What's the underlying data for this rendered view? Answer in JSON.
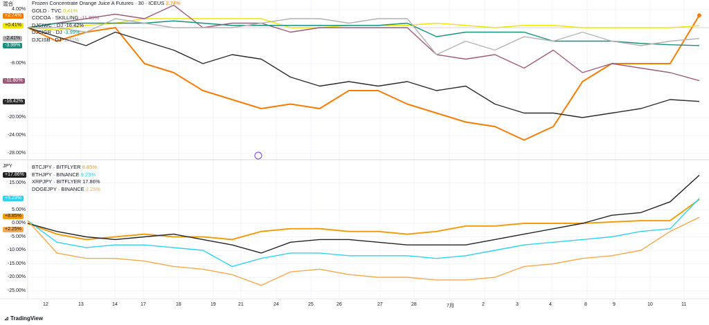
{
  "top_pane": {
    "label": "混合",
    "yticks": [
      "4.00%",
      "-8.00%",
      "-20.00%",
      "-24.00%",
      "-28.00%"
    ]
  },
  "bottom_pane": {
    "label": "JPY",
    "yticks": [
      "15.00%",
      "5.00%",
      "0.00%",
      "-5.00%",
      "-10.00%",
      "-15.00%",
      "-20.00%",
      "-25.00%"
    ]
  },
  "xticks": [
    "12",
    "13",
    "14",
    "17",
    "18",
    "19",
    "21",
    "24",
    "25",
    "26",
    "27",
    "28",
    "7月",
    "2",
    "3",
    "4",
    "8",
    "9",
    "10",
    "11"
  ],
  "footer": {
    "logo": "TradingView"
  },
  "chart_data": [
    {
      "type": "line",
      "pane": "top",
      "ylim": [
        -28,
        4
      ],
      "series": [
        {
          "name": "Frozen Concentrate Orange Juice A Futures · 30 · ICEUS",
          "last": "2.74%",
          "tag": "+2.74%",
          "color": "#f57c00",
          "values": [
            0,
            -3,
            -1,
            0,
            -8,
            -10,
            -14,
            -16,
            -18,
            -17,
            -18,
            -14,
            -14,
            -17,
            -19,
            -21,
            -22,
            -25,
            -22,
            -12,
            -8,
            -8,
            -8,
            2.74
          ]
        },
        {
          "name": "GOLD · TVC",
          "last": "0.41%",
          "tag": "+0.41%",
          "color": "#f2e600",
          "values": [
            0,
            -0.5,
            0.5,
            1,
            2,
            2,
            2,
            2,
            2,
            0,
            0,
            0.5,
            0.5,
            0.5,
            1,
            0.5,
            0,
            0.5,
            0.5,
            0,
            0,
            0,
            0,
            0.41
          ]
        },
        {
          "name": "COCOA · SKILLING",
          "last": "-11.80%",
          "tag": "-11.80%",
          "color": "#9c5a7c",
          "values": [
            0,
            1,
            2,
            3,
            2,
            5,
            0,
            1,
            1,
            -1,
            0,
            0,
            0,
            0,
            -6,
            -7,
            -6,
            -9,
            -5,
            -10,
            -8,
            -9,
            -10,
            -11.8
          ]
        },
        {
          "name": "DJCIWC · DJ",
          "last": "-16.42%",
          "tag": "-16.42%",
          "color": "#2a2a2a",
          "values": [
            0,
            -2,
            -4,
            -1,
            -3,
            -5,
            -8,
            -6,
            -7,
            -11,
            -13,
            -12,
            -13,
            -12,
            -14,
            -13,
            -17,
            -19,
            -19,
            -20,
            -19,
            -18,
            -16,
            -16.42
          ]
        },
        {
          "name": "DJCIGR · DJ",
          "last": "-3.99%",
          "tag": "-3.99%",
          "color": "#14907e",
          "values": [
            0,
            1,
            1,
            1,
            1,
            1.5,
            1,
            0.5,
            0.5,
            0.5,
            0.5,
            0.5,
            0.5,
            1,
            -2,
            -1,
            -1,
            -1,
            -3,
            -3,
            -3,
            -3.5,
            -3.8,
            -3.99
          ]
        },
        {
          "name": "DJCISB · DJ",
          "last": "-2.41%",
          "tag": "-2.41%",
          "color": "#b2b2b2",
          "values": [
            0,
            0,
            -1,
            2,
            1,
            0,
            0,
            0,
            1,
            2,
            2,
            1,
            2,
            2,
            -6,
            -3,
            -5,
            -2,
            -3,
            -1,
            -3,
            -4,
            -3,
            -2.41
          ]
        }
      ]
    },
    {
      "type": "line",
      "pane": "bottom",
      "ylim": [
        -25,
        15
      ],
      "series": [
        {
          "name": "BTCJPY · BITFLYER",
          "last": "8.85%",
          "tag": "+8.85%",
          "color": "#f29d0d",
          "values": [
            0,
            -4,
            -6,
            -5,
            -4,
            -5,
            -5,
            -6,
            -3,
            -2,
            -2,
            -3,
            -3,
            -4,
            -3,
            -1,
            -1,
            0,
            0,
            0,
            0.5,
            1,
            1,
            8.85
          ]
        },
        {
          "name": "ETHJPY · BINANCE",
          "last": "9.23%",
          "tag": "+9.23%",
          "color": "#2ed2ee",
          "values": [
            1,
            -7,
            -9,
            -8,
            -8,
            -9,
            -10,
            -16,
            -13,
            -11,
            -11,
            -12,
            -12,
            -12,
            -13,
            -12,
            -10,
            -8,
            -7,
            -6,
            -5,
            -3,
            -2,
            9.23
          ]
        },
        {
          "name": "XRPJPY · BITFLYER",
          "last": "17.86%",
          "tag": "+17.86%",
          "color": "#222222",
          "values": [
            0,
            -3,
            -5,
            -6,
            -5,
            -4,
            -6,
            -8,
            -11,
            -7,
            -6,
            -6,
            -7,
            -8,
            -8,
            -8,
            -6,
            -4,
            -2,
            0,
            3,
            4,
            8,
            17.86
          ]
        },
        {
          "name": "DOGEJPY · BINANCE",
          "last": "2.25%",
          "tag": "+2.25%",
          "color": "#f7a84a",
          "values": [
            1,
            -11,
            -13,
            -13,
            -14,
            -16,
            -17,
            -19,
            -23,
            -18,
            -17,
            -19,
            -20,
            -20,
            -21,
            -21,
            -20,
            -16,
            -15,
            -13,
            -12,
            -10,
            -3,
            2.25
          ]
        }
      ]
    }
  ]
}
